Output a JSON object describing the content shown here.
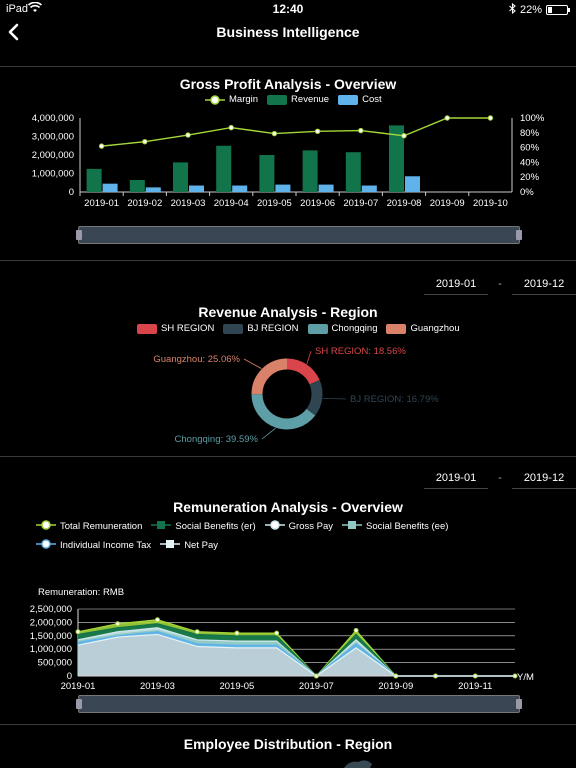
{
  "status": {
    "device": "iPad",
    "time": "12:40",
    "battery": "22%",
    "battery_level": 0.22
  },
  "nav": {
    "title": "Business Intelligence"
  },
  "colors": {
    "margin": "#a4d63a",
    "revenue": "#12744a",
    "cost": "#5fb3ea",
    "sh": "#d9454a",
    "bj": "#2f4552",
    "chongqing": "#5e9fa7",
    "guangzhou": "#d98269",
    "total": "#a4d63a",
    "social_er": "#12744a",
    "gross": "#cfe7ee",
    "social_ee": "#8fcac3",
    "tax": "#5fb3ea",
    "net": "#e6f2f3"
  },
  "gross_profit": {
    "title": "Gross Profit Analysis - Overview",
    "legend": [
      "Margin",
      "Revenue",
      "Cost"
    ],
    "chart_data": {
      "type": "bar",
      "categories": [
        "2019-01",
        "2019-02",
        "2019-03",
        "2019-04",
        "2019-05",
        "2019-06",
        "2019-07",
        "2019-08",
        "2019-09",
        "2019-10"
      ],
      "series": [
        {
          "name": "Revenue",
          "type": "bar",
          "values": [
            1250000,
            650000,
            1600000,
            2500000,
            2000000,
            2250000,
            2150000,
            3600000,
            null,
            null
          ]
        },
        {
          "name": "Cost",
          "type": "bar",
          "values": [
            450000,
            250000,
            350000,
            350000,
            400000,
            400000,
            350000,
            850000,
            null,
            null
          ]
        },
        {
          "name": "Margin",
          "type": "line",
          "axis": "right",
          "values": [
            62,
            68,
            77,
            87,
            79,
            82,
            83,
            76,
            100,
            100
          ]
        }
      ],
      "ylim": [
        0,
        4000000
      ],
      "y_ticks": [
        "4,000,000",
        "3,000,000",
        "2,000,000",
        "1,000,000",
        "0"
      ],
      "y2lim": [
        0,
        100
      ],
      "y2_ticks": [
        "100%",
        "80%",
        "60%",
        "40%",
        "20%",
        "0%"
      ]
    }
  },
  "revenue_region": {
    "title": "Revenue Analysis - Region",
    "date_from": "2019-01",
    "date_sep": "-",
    "date_to": "2019-12",
    "legend": [
      "SH REGION",
      "BJ REGION",
      "Chongqing",
      "Guangzhou"
    ],
    "chart_data": {
      "type": "pie",
      "slices": [
        {
          "name": "SH REGION",
          "value": 18.56
        },
        {
          "name": "BJ REGION",
          "value": 16.79
        },
        {
          "name": "Chongqing",
          "value": 39.59
        },
        {
          "name": "Guangzhou",
          "value": 25.06
        }
      ]
    },
    "labels": [
      "SH REGION: 18.56%",
      "BJ REGION: 16.79%",
      "Chongqing: 39.59%",
      "Guangzhou: 25.06%"
    ]
  },
  "remuneration": {
    "title": "Remuneration Analysis - Overview",
    "date_from": "2019-01",
    "date_sep": "-",
    "date_to": "2019-12",
    "legend": [
      "Total Remuneration",
      "Social Benefits (er)",
      "Gross Pay",
      "Social Benefits (ee)",
      "Individual Income Tax",
      "Net Pay"
    ],
    "axis_title": "Remuneration: RMB",
    "axis_unit": "Y/M",
    "chart_data": {
      "type": "area",
      "x": [
        "2019-01",
        "2019-02",
        "2019-03",
        "2019-04",
        "2019-05",
        "2019-06",
        "2019-07",
        "2019-08",
        "2019-09",
        "2019-10",
        "2019-11",
        "2019-12"
      ],
      "x_ticks": [
        "2019-01",
        "2019-03",
        "2019-05",
        "2019-07",
        "2019-09",
        "2019-11"
      ],
      "series": [
        {
          "name": "Total Remuneration",
          "values": [
            1650000,
            1950000,
            2100000,
            1650000,
            1600000,
            1600000,
            0,
            1700000,
            0,
            0,
            0,
            0
          ]
        },
        {
          "name": "Social Benefits (er)",
          "values": [
            1550000,
            1800000,
            1950000,
            1550000,
            1500000,
            1500000,
            0,
            1550000,
            0,
            0,
            0,
            0
          ]
        },
        {
          "name": "Gross Pay",
          "values": [
            1350000,
            1650000,
            1800000,
            1350000,
            1300000,
            1300000,
            0,
            1350000,
            0,
            0,
            0,
            0
          ]
        },
        {
          "name": "Social Benefits (ee)",
          "values": [
            1300000,
            1550000,
            1700000,
            1300000,
            1250000,
            1250000,
            0,
            1250000,
            0,
            0,
            0,
            0
          ]
        },
        {
          "name": "Individual Income Tax",
          "values": [
            1250000,
            1500000,
            1650000,
            1200000,
            1150000,
            1150000,
            0,
            1200000,
            0,
            0,
            0,
            0
          ]
        },
        {
          "name": "Net Pay",
          "values": [
            1150000,
            1450000,
            1550000,
            1100000,
            1050000,
            1050000,
            0,
            1050000,
            0,
            0,
            0,
            0
          ]
        }
      ],
      "ylim": [
        0,
        2500000
      ],
      "y_ticks": [
        "2,500,000",
        "2,000,000",
        "1,500,000",
        "1,000,000",
        "500,000",
        "0"
      ]
    }
  },
  "employee": {
    "title": "Employee Distribution - Region"
  }
}
